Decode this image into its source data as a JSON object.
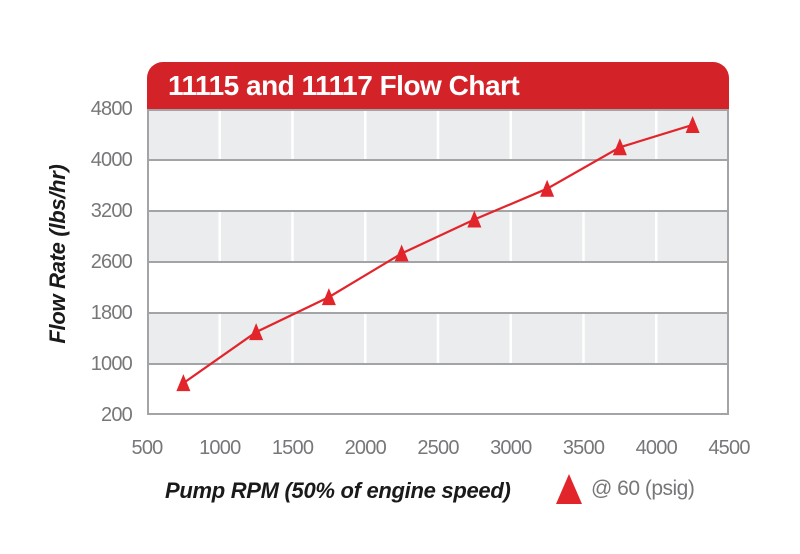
{
  "banner": {
    "title": "11115 and 11117 Flow Chart",
    "bg_color": "#D32329",
    "text_color": "#FFFFFF"
  },
  "y_axis": {
    "title": "Flow Rate (lbs/hr)"
  },
  "x_axis": {
    "title": "Pump RPM (50% of engine speed)"
  },
  "legend": {
    "label": "@ 60 (psig)",
    "marker": "red-triangle-up",
    "marker_color": "#E2242B"
  },
  "chart_data": {
    "type": "line",
    "title": "11115 and 11117 Flow Chart",
    "xlabel": "Pump RPM (50% of engine speed)",
    "ylabel": "Flow Rate (lbs/hr)",
    "xlim": [
      500,
      4500
    ],
    "x_ticks": [
      500,
      1000,
      1500,
      2000,
      2500,
      3000,
      3500,
      4000,
      4500
    ],
    "y_ticks": [
      200,
      1000,
      1800,
      2600,
      3200,
      4000,
      4800
    ],
    "y_tick_spacing": "equal intervals as printed, despite unequal values",
    "grid": "alternating gray/white horizontal bands with white vertical tick lines",
    "legend_position": "bottom-right",
    "series": [
      {
        "name": "@ 60 (psig)",
        "marker": "triangle-up",
        "color": "#E2242B",
        "x": [
          750,
          1250,
          1750,
          2250,
          2750,
          3250,
          3750,
          4250
        ],
        "y": [
          700,
          1500,
          2050,
          2700,
          3100,
          3550,
          4200,
          4550
        ]
      }
    ],
    "colors": {
      "band_gray": "#EBECEE",
      "band_white": "#FFFFFF",
      "grid_line": "#A3A4A8",
      "tick_text": "#76777A"
    }
  }
}
